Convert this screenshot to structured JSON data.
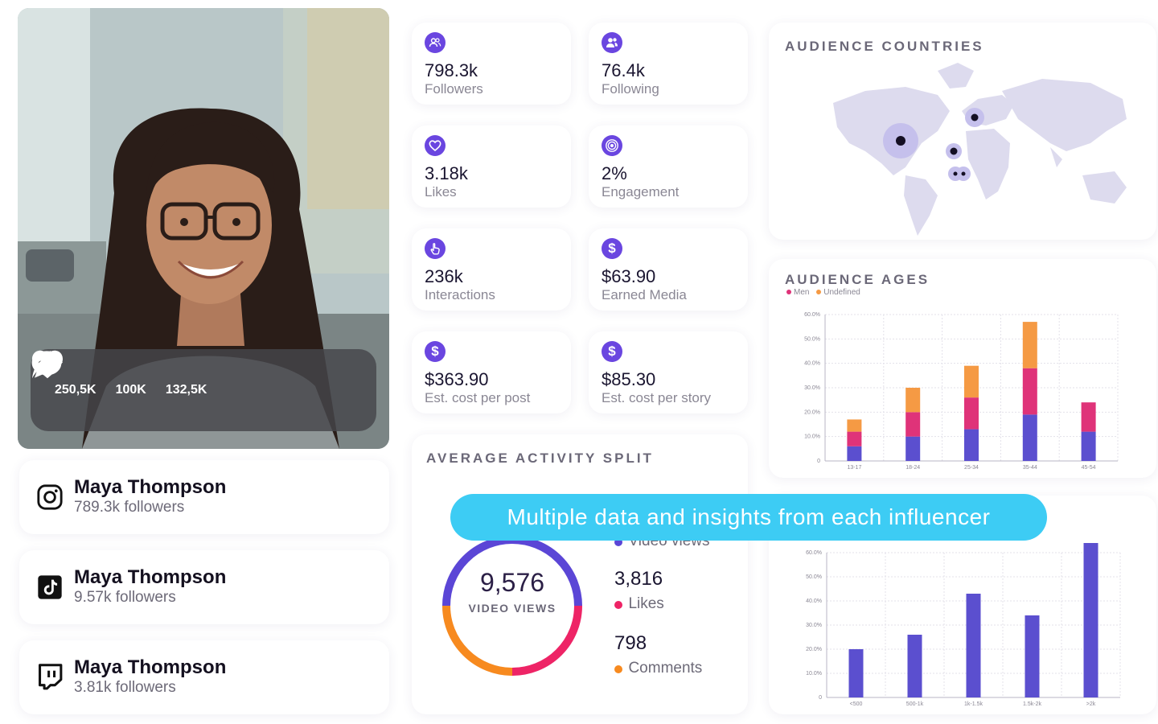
{
  "profile": {
    "reactions": [
      {
        "icon": "heart-icon",
        "value": "250,5K"
      },
      {
        "icon": "comment-icon",
        "value": "100K"
      },
      {
        "icon": "share-icon",
        "value": "132,5K"
      }
    ]
  },
  "socials": [
    {
      "platform": "instagram-icon",
      "name": "Maya Thompson",
      "followers": "789.3k followers"
    },
    {
      "platform": "tiktok-icon",
      "name": "Maya Thompson",
      "followers": "9.57k followers"
    },
    {
      "platform": "twitch-icon",
      "name": "Maya Thompson",
      "followers": "3.81k followers"
    }
  ],
  "stats": [
    {
      "icon": "followers-icon",
      "value": "798.3k",
      "label": "Followers"
    },
    {
      "icon": "following-icon",
      "value": "76.4k",
      "label": "Following"
    },
    {
      "icon": "heart-icon",
      "value": "3.18k",
      "label": "Likes"
    },
    {
      "icon": "target-icon",
      "value": "2%",
      "label": "Engagement"
    },
    {
      "icon": "tap-icon",
      "value": "236k",
      "label": "Interactions"
    },
    {
      "icon": "dollar-icon",
      "value": "$63.90",
      "label": "Earned Media"
    },
    {
      "icon": "dollar-icon",
      "value": "$363.90",
      "label": "Est. cost per post"
    },
    {
      "icon": "dollar-icon",
      "value": "$85.30",
      "label": "Est. cost per story"
    }
  ],
  "activity": {
    "title": "AVERAGE ACTIVITY SPLIT",
    "center_value": "9,576",
    "center_label": "VIDEO VIEWS",
    "items": [
      {
        "label": "Video views",
        "value": "",
        "color": "#5b46d6"
      },
      {
        "label": "Likes",
        "value": "3,816",
        "color": "#ee2466"
      },
      {
        "label": "Comments",
        "value": "798",
        "color": "#f78a1f"
      }
    ]
  },
  "banner": {
    "text": "Multiple data and insights from each influencer"
  },
  "countries": {
    "title": "AUDIENCE COUNTRIES"
  },
  "colors": {
    "purple": "#5b4fcf",
    "pink": "#df3379",
    "orange": "#f59a44",
    "cyan": "#3dccf4"
  },
  "chart_data": [
    {
      "type": "bar",
      "title": "AUDIENCE AGES",
      "stacked": true,
      "categories": [
        "13-17",
        "18-24",
        "25-34",
        "35-44",
        "45-54"
      ],
      "y_ticks": [
        "0",
        "10.0%",
        "20.0%",
        "30.0%",
        "40.0%",
        "50.0%",
        "60.0%"
      ],
      "ylim": [
        0,
        60
      ],
      "legend": [
        {
          "name": "Men",
          "color": "#df3379"
        },
        {
          "name": "Undefined",
          "color": "#f59a44"
        }
      ],
      "series": [
        {
          "color": "#5b4fcf",
          "values": [
            6,
            10,
            13,
            19,
            12
          ]
        },
        {
          "name": "Men",
          "color": "#df3379",
          "values": [
            6,
            10,
            13,
            19,
            12
          ]
        },
        {
          "name": "Undefined",
          "color": "#f59a44",
          "values": [
            5,
            10,
            13,
            19,
            0
          ]
        }
      ]
    },
    {
      "type": "bar",
      "stacked": false,
      "categories": [
        "<500",
        "500-1k",
        "1k-1.5k",
        "1.5k-2k",
        ">2k"
      ],
      "y_ticks": [
        "0",
        "10.0%",
        "20.0%",
        "30.0%",
        "40.0%",
        "50.0%",
        "60.0%"
      ],
      "ylim": [
        0,
        60
      ],
      "series": [
        {
          "color": "#5b4fcf",
          "values": [
            20,
            26,
            43,
            34,
            64
          ]
        }
      ]
    }
  ]
}
